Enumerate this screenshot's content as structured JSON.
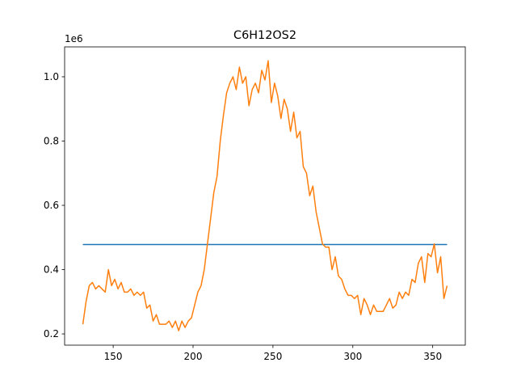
{
  "chart_data": {
    "type": "line",
    "title": "C6H12OS2",
    "y_offset_label": "1e6",
    "xlim": [
      119.6,
      370.4
    ],
    "xticks": [
      150,
      200,
      250,
      300,
      350
    ],
    "ylim": [
      165000,
      1093000
    ],
    "yticks": [
      {
        "value": 200000,
        "label": "0.2"
      },
      {
        "value": 400000,
        "label": "0.4"
      },
      {
        "value": 600000,
        "label": "0.6"
      },
      {
        "value": 800000,
        "label": "0.8"
      },
      {
        "value": 1000000,
        "label": "1.0"
      }
    ],
    "series": [
      {
        "color": "#1f77b4",
        "x": [
          131,
          359
        ],
        "values": [
          478000,
          478000
        ]
      },
      {
        "color": "#ff7f0e",
        "x": [
          131,
          133,
          135,
          137,
          139,
          141,
          143,
          145,
          147,
          149,
          151,
          153,
          155,
          157,
          159,
          161,
          163,
          165,
          167,
          169,
          171,
          173,
          175,
          177,
          179,
          181,
          183,
          185,
          187,
          189,
          191,
          193,
          195,
          197,
          199,
          201,
          203,
          205,
          207,
          209,
          211,
          213,
          215,
          217,
          219,
          221,
          223,
          225,
          227,
          229,
          231,
          233,
          235,
          237,
          239,
          241,
          243,
          245,
          247,
          249,
          251,
          253,
          255,
          257,
          259,
          261,
          263,
          265,
          267,
          269,
          271,
          273,
          275,
          277,
          279,
          281,
          283,
          285,
          287,
          289,
          291,
          293,
          295,
          297,
          299,
          301,
          303,
          305,
          307,
          309,
          311,
          313,
          315,
          317,
          319,
          321,
          323,
          325,
          327,
          329,
          331,
          333,
          335,
          337,
          339,
          341,
          343,
          345,
          347,
          349,
          351,
          353,
          355,
          357,
          359
        ],
        "values": [
          230000,
          300000,
          350000,
          360000,
          340000,
          350000,
          340000,
          330000,
          400000,
          350000,
          370000,
          340000,
          360000,
          330000,
          330000,
          340000,
          320000,
          330000,
          320000,
          330000,
          280000,
          290000,
          240000,
          260000,
          230000,
          230000,
          230000,
          240000,
          220000,
          240000,
          210000,
          240000,
          220000,
          240000,
          250000,
          290000,
          330000,
          350000,
          400000,
          480000,
          560000,
          640000,
          690000,
          800000,
          880000,
          950000,
          980000,
          1000000,
          960000,
          1030000,
          980000,
          1000000,
          910000,
          960000,
          980000,
          950000,
          1020000,
          990000,
          1050000,
          920000,
          980000,
          940000,
          870000,
          930000,
          900000,
          830000,
          890000,
          810000,
          830000,
          720000,
          700000,
          630000,
          660000,
          580000,
          530000,
          480000,
          470000,
          470000,
          400000,
          440000,
          380000,
          370000,
          340000,
          320000,
          320000,
          310000,
          320000,
          260000,
          310000,
          290000,
          260000,
          290000,
          270000,
          270000,
          270000,
          290000,
          310000,
          280000,
          290000,
          330000,
          310000,
          330000,
          320000,
          370000,
          360000,
          420000,
          440000,
          360000,
          450000,
          440000,
          480000,
          390000,
          440000,
          310000,
          350000
        ]
      }
    ]
  }
}
